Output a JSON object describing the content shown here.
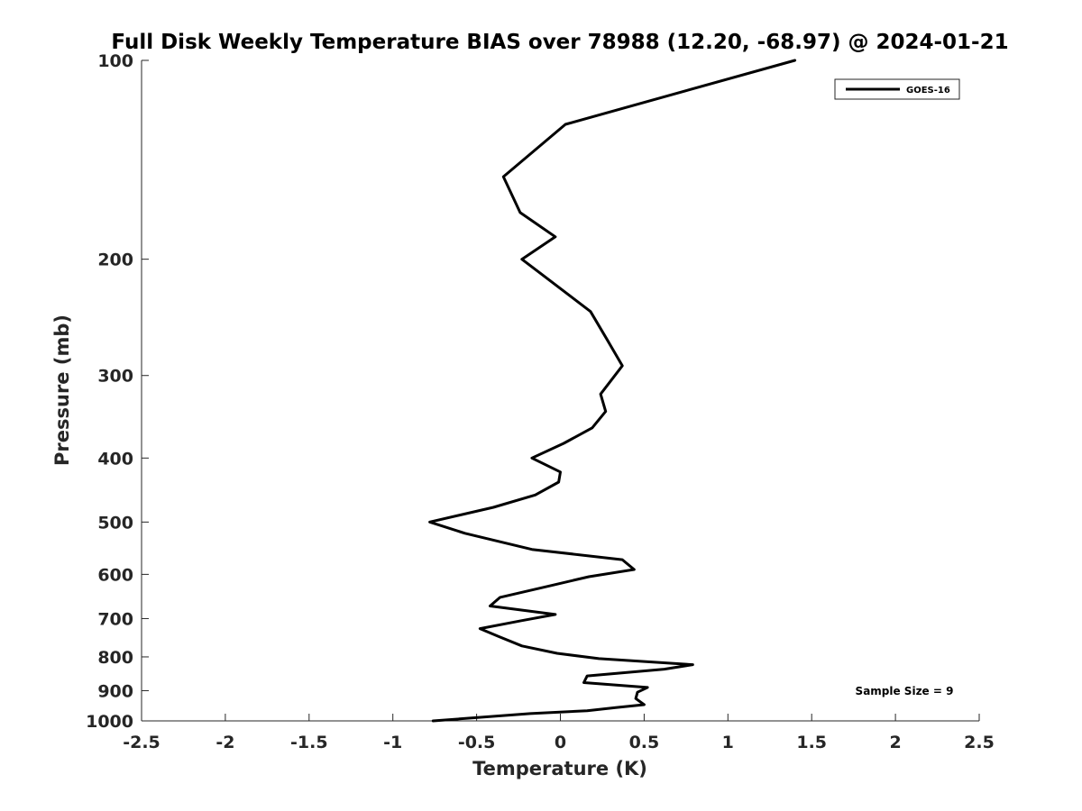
{
  "chart_data": {
    "type": "line",
    "title": "Full Disk Weekly Temperature BIAS over 78988 (12.20, -68.97) @ 2024-01-21",
    "xlabel": "Temperature (K)",
    "ylabel": "Pressure (mb)",
    "xlim": [
      -2.5,
      2.5
    ],
    "ylim": [
      1000,
      100
    ],
    "y_scale": "log",
    "y_reversed": true,
    "x_ticks": [
      -2.5,
      -2,
      -1.5,
      -1,
      -0.5,
      0,
      0.5,
      1,
      1.5,
      2,
      2.5
    ],
    "x_tick_labels": [
      "-2.5",
      "-2",
      "-1.5",
      "-1",
      "-0.5",
      "0",
      "0.5",
      "1",
      "1.5",
      "2",
      "2.5"
    ],
    "y_ticks": [
      100,
      200,
      300,
      400,
      500,
      600,
      700,
      800,
      900,
      1000
    ],
    "y_tick_labels": [
      "100",
      "200",
      "300",
      "400",
      "500",
      "600",
      "700",
      "800",
      "900",
      "1000"
    ],
    "grid": false,
    "legend_position": "top-right",
    "annotation": "Sample Size = 9",
    "line_color": "#000000",
    "series": [
      {
        "name": "GOES-16",
        "x": [
          1.4,
          0.03,
          -0.34,
          -0.24,
          -0.03,
          -0.23,
          -0.12,
          0.18,
          0.28,
          0.37,
          0.24,
          0.27,
          0.19,
          0.02,
          -0.17,
          0.0,
          -0.01,
          -0.15,
          -0.4,
          -0.78,
          -0.57,
          -0.17,
          0.37,
          0.44,
          0.17,
          -0.07,
          -0.36,
          -0.42,
          -0.03,
          -0.23,
          -0.48,
          -0.37,
          -0.23,
          -0.02,
          0.23,
          0.79,
          0.62,
          0.16,
          0.14,
          0.52,
          0.46,
          0.45,
          0.5,
          0.33,
          0.16,
          -0.18,
          -0.76
        ],
        "y": [
          100,
          125,
          150,
          170,
          185,
          200,
          210,
          240,
          265,
          290,
          320,
          340,
          360,
          380,
          400,
          420,
          435,
          455,
          475,
          500,
          520,
          550,
          570,
          590,
          605,
          625,
          650,
          670,
          690,
          705,
          725,
          745,
          770,
          790,
          805,
          822,
          835,
          855,
          875,
          890,
          905,
          925,
          945,
          955,
          965,
          975,
          1000
        ]
      }
    ]
  }
}
